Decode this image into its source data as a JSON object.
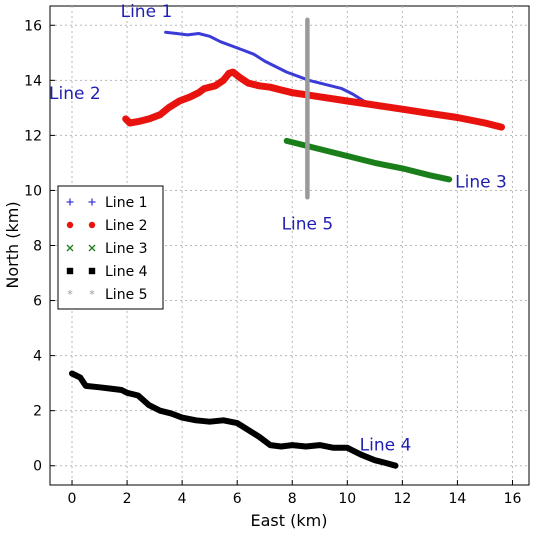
{
  "chart_data": {
    "type": "line",
    "title": "",
    "xlabel": "East (km)",
    "ylabel": "North (km)",
    "xlim": [
      -0.8,
      16.6
    ],
    "ylim": [
      -0.7,
      16.7
    ],
    "grid": true,
    "legend_position": "middle-left",
    "x_ticks": [
      "0",
      "2",
      "4",
      "6",
      "8",
      "10",
      "12",
      "14",
      "16"
    ],
    "y_ticks": [
      "0",
      "2",
      "4",
      "6",
      "8",
      "10",
      "12",
      "14",
      "16"
    ],
    "label_color": "#1f1fb4",
    "series": [
      {
        "name": "Line 1",
        "color": "#3b3bd6",
        "marker": "plus",
        "annotation": "Line 1",
        "points": [
          [
            3.4,
            15.75
          ],
          [
            3.8,
            15.7
          ],
          [
            4.2,
            15.65
          ],
          [
            4.6,
            15.7
          ],
          [
            5.0,
            15.6
          ],
          [
            5.4,
            15.4
          ],
          [
            5.8,
            15.25
          ],
          [
            6.2,
            15.1
          ],
          [
            6.6,
            14.95
          ],
          [
            7.0,
            14.7
          ],
          [
            7.4,
            14.5
          ],
          [
            7.8,
            14.3
          ],
          [
            8.2,
            14.15
          ],
          [
            8.6,
            14.0
          ],
          [
            9.0,
            13.9
          ],
          [
            9.4,
            13.8
          ],
          [
            9.8,
            13.7
          ],
          [
            10.2,
            13.5
          ],
          [
            10.6,
            13.25
          ],
          [
            11.0,
            13.05
          ]
        ]
      },
      {
        "name": "Line 2",
        "color": "#e8120f",
        "marker": "circle",
        "annotation": "Line 2",
        "points": [
          [
            1.95,
            12.6
          ],
          [
            2.1,
            12.45
          ],
          [
            2.4,
            12.5
          ],
          [
            2.8,
            12.6
          ],
          [
            3.2,
            12.75
          ],
          [
            3.5,
            13.0
          ],
          [
            3.9,
            13.25
          ],
          [
            4.3,
            13.4
          ],
          [
            4.6,
            13.55
          ],
          [
            4.8,
            13.7
          ],
          [
            5.2,
            13.8
          ],
          [
            5.5,
            14.0
          ],
          [
            5.7,
            14.25
          ],
          [
            5.85,
            14.3
          ],
          [
            6.1,
            14.1
          ],
          [
            6.4,
            13.9
          ],
          [
            6.8,
            13.8
          ],
          [
            7.2,
            13.75
          ],
          [
            7.6,
            13.65
          ],
          [
            8.0,
            13.55
          ],
          [
            9.0,
            13.4
          ],
          [
            10.0,
            13.25
          ],
          [
            11.0,
            13.1
          ],
          [
            12.0,
            12.95
          ],
          [
            13.0,
            12.8
          ],
          [
            14.0,
            12.65
          ],
          [
            15.0,
            12.45
          ],
          [
            15.6,
            12.3
          ]
        ]
      },
      {
        "name": "Line 3",
        "color": "#1a7f1a",
        "marker": "x",
        "annotation": "Line 3",
        "points": [
          [
            7.8,
            11.8
          ],
          [
            9.0,
            11.5
          ],
          [
            10.0,
            11.25
          ],
          [
            11.0,
            11.0
          ],
          [
            12.0,
            10.8
          ],
          [
            13.0,
            10.55
          ],
          [
            13.7,
            10.4
          ]
        ]
      },
      {
        "name": "Line 4",
        "color": "#000000",
        "marker": "square",
        "annotation": "Line 4",
        "points": [
          [
            0.0,
            3.35
          ],
          [
            0.3,
            3.2
          ],
          [
            0.5,
            2.9
          ],
          [
            1.0,
            2.85
          ],
          [
            1.4,
            2.8
          ],
          [
            1.8,
            2.75
          ],
          [
            2.0,
            2.65
          ],
          [
            2.4,
            2.55
          ],
          [
            2.8,
            2.2
          ],
          [
            3.2,
            2.0
          ],
          [
            3.6,
            1.9
          ],
          [
            4.0,
            1.75
          ],
          [
            4.5,
            1.65
          ],
          [
            5.0,
            1.6
          ],
          [
            5.5,
            1.65
          ],
          [
            6.0,
            1.55
          ],
          [
            6.4,
            1.3
          ],
          [
            6.8,
            1.05
          ],
          [
            7.2,
            0.75
          ],
          [
            7.6,
            0.7
          ],
          [
            8.0,
            0.75
          ],
          [
            8.5,
            0.7
          ],
          [
            9.0,
            0.75
          ],
          [
            9.5,
            0.65
          ],
          [
            10.0,
            0.65
          ],
          [
            10.5,
            0.4
          ],
          [
            11.0,
            0.2
          ],
          [
            11.4,
            0.1
          ],
          [
            11.75,
            0.0
          ]
        ]
      },
      {
        "name": "Line 5",
        "color": "#9a9a9a",
        "marker": "star",
        "annotation": "Line 5",
        "points": [
          [
            8.55,
            16.2
          ],
          [
            8.55,
            9.75
          ]
        ]
      }
    ]
  }
}
